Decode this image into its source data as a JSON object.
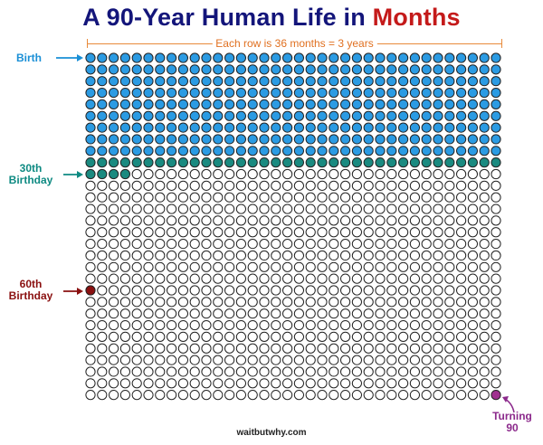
{
  "title": {
    "prefix": "A 90-Year Human Life in ",
    "accent": "Months"
  },
  "row_note": "Each row is 36 months = 3 years",
  "labels": {
    "birth": "Birth",
    "thirtieth_line1": "30th",
    "thirtieth_line2": "Birthday",
    "sixtieth_line1": "60th",
    "sixtieth_line2": "Birthday",
    "ninety_line1": "Turning",
    "ninety_line2": "90"
  },
  "footer": "waitbutwhy.com",
  "grid": {
    "columns": 36,
    "rows": 30,
    "total_months": 1080,
    "filled_blue_months": 324,
    "filled_teal_months": 40,
    "sixtieth_birthday_month": 720,
    "turning_ninety_month": 1080
  },
  "colors": {
    "title": "#13157a",
    "accent": "#c41a1a",
    "blue_fill": "#2b9be3",
    "teal_fill": "#1a8a80",
    "sixty_fill": "#8a1010",
    "ninety_fill": "#a0308f",
    "empty_stroke": "#222222",
    "note": "#e07020",
    "birth_label": "#1a8fd6",
    "thirty_label": "#0e8a82",
    "sixty_label": "#8a1010",
    "ninety_label": "#8c2a8c"
  }
}
